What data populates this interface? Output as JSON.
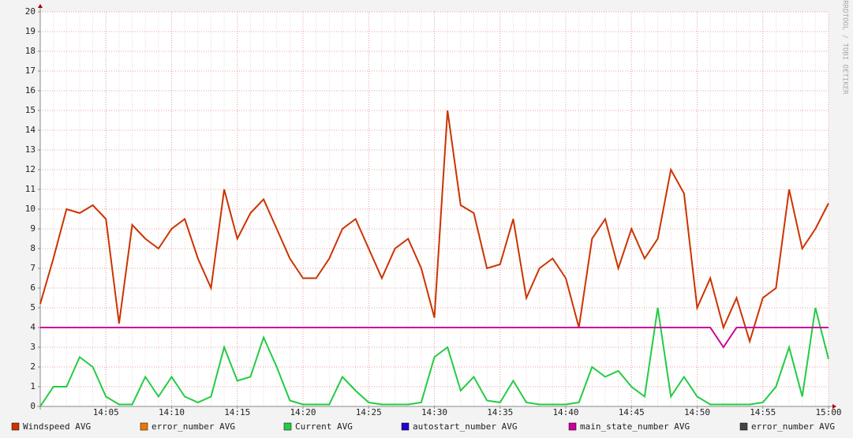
{
  "chart_data": {
    "type": "line",
    "watermark": "RRDTOOL / TOBI OETIKER",
    "x": [
      "14:00",
      "14:01",
      "14:02",
      "14:03",
      "14:04",
      "14:05",
      "14:06",
      "14:07",
      "14:08",
      "14:09",
      "14:10",
      "14:11",
      "14:12",
      "14:13",
      "14:14",
      "14:15",
      "14:16",
      "14:17",
      "14:18",
      "14:19",
      "14:20",
      "14:21",
      "14:22",
      "14:23",
      "14:24",
      "14:25",
      "14:26",
      "14:27",
      "14:28",
      "14:29",
      "14:30",
      "14:31",
      "14:32",
      "14:33",
      "14:34",
      "14:35",
      "14:36",
      "14:37",
      "14:38",
      "14:39",
      "14:40",
      "14:41",
      "14:42",
      "14:43",
      "14:44",
      "14:45",
      "14:46",
      "14:47",
      "14:48",
      "14:49",
      "14:50",
      "14:51",
      "14:52",
      "14:53",
      "14:54",
      "14:55",
      "14:56",
      "14:57",
      "14:58",
      "14:59",
      "15:00"
    ],
    "xlim": [
      "14:00",
      "15:00"
    ],
    "xticks": [
      "14:05",
      "14:10",
      "14:15",
      "14:20",
      "14:25",
      "14:30",
      "14:35",
      "14:40",
      "14:45",
      "14:50",
      "14:55",
      "15:00"
    ],
    "ylim": [
      0,
      20
    ],
    "yticks": [
      0,
      1,
      2,
      3,
      4,
      5,
      6,
      7,
      8,
      9,
      10,
      11,
      12,
      13,
      14,
      15,
      16,
      17,
      18,
      19,
      20
    ],
    "grid": true,
    "series": [
      {
        "name": "Windspeed AVG",
        "color": "#cc3300",
        "values": [
          5.2,
          7.5,
          10,
          9.8,
          10.2,
          9.5,
          4.2,
          9.2,
          8.5,
          8.0,
          9.0,
          9.5,
          7.5,
          6.0,
          11.0,
          8.5,
          9.8,
          10.5,
          9.0,
          7.5,
          6.5,
          6.5,
          7.5,
          9.0,
          9.5,
          8.0,
          6.5,
          8.0,
          8.5,
          7.0,
          4.5,
          15.0,
          10.2,
          9.8,
          7.0,
          7.2,
          9.5,
          5.5,
          7.0,
          7.5,
          6.5,
          4.0,
          8.5,
          9.5,
          7.0,
          9.0,
          7.5,
          8.5,
          12.0,
          10.8,
          5.0,
          6.5,
          4.0,
          5.5,
          3.3,
          5.5,
          6.0,
          11.0,
          8.0,
          9.0,
          10.3
        ]
      },
      {
        "name": "error_number AVG",
        "color": "#ee7700"
      },
      {
        "name": "Current AVG",
        "color": "#22cc44",
        "values": [
          0,
          1.0,
          1.0,
          2.5,
          2.0,
          0.5,
          0.1,
          0.1,
          1.5,
          0.5,
          1.5,
          0.5,
          0.2,
          0.5,
          3.0,
          1.3,
          1.5,
          3.5,
          2.0,
          0.3,
          0.1,
          0.1,
          0.1,
          1.5,
          0.8,
          0.2,
          0.1,
          0.1,
          0.1,
          0.2,
          2.5,
          3.0,
          0.8,
          1.5,
          0.3,
          0.2,
          1.3,
          0.2,
          0.1,
          0.1,
          0.1,
          0.2,
          2.0,
          1.5,
          1.8,
          1.0,
          0.5,
          5.0,
          0.5,
          1.5,
          0.5,
          0.1,
          0.1,
          0.1,
          0.1,
          0.2,
          1.0,
          3.0,
          0.5,
          5.0,
          2.4
        ]
      },
      {
        "name": "autostart_number AVG",
        "color": "#2200cc"
      },
      {
        "name": "main_state_number AVG",
        "color": "#cc0099",
        "values": [
          4,
          4,
          4,
          4,
          4,
          4,
          4,
          4,
          4,
          4,
          4,
          4,
          4,
          4,
          4,
          4,
          4,
          4,
          4,
          4,
          4,
          4,
          4,
          4,
          4,
          4,
          4,
          4,
          4,
          4,
          4,
          4,
          4,
          4,
          4,
          4,
          4,
          4,
          4,
          4,
          4,
          4,
          4,
          4,
          4,
          4,
          4,
          4,
          4,
          4,
          4,
          4,
          3,
          4,
          4,
          4,
          4,
          4,
          4,
          4,
          4
        ]
      },
      {
        "name": "error_number AVG",
        "color": "#444444"
      }
    ]
  }
}
